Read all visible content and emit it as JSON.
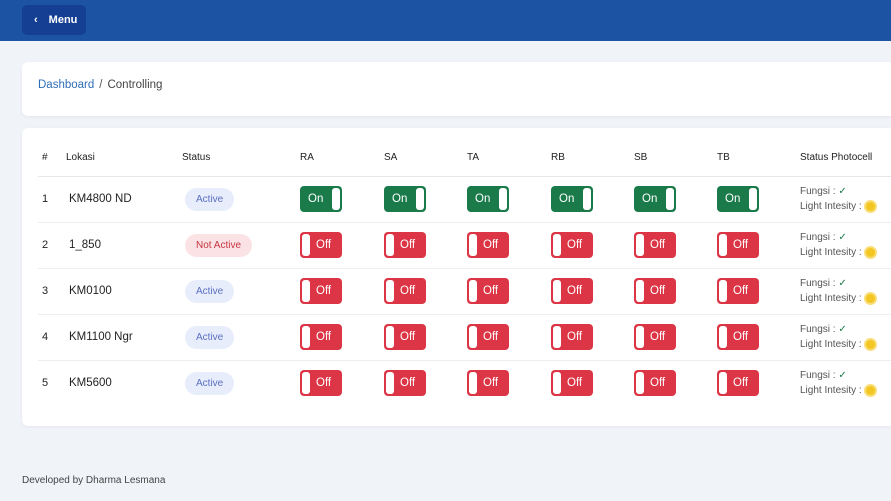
{
  "header": {
    "menu_label": "Menu"
  },
  "breadcrumb": {
    "home": "Dashboard",
    "separator": "/",
    "current": "Controlling"
  },
  "table": {
    "columns": [
      "#",
      "Lokasi",
      "Status",
      "RA",
      "SA",
      "TA",
      "RB",
      "SB",
      "TB",
      "Status Photocell"
    ],
    "rows": [
      {
        "no": "1",
        "lokasi": "KM4800 ND",
        "status": "Active",
        "toggles": [
          "On",
          "On",
          "On",
          "On",
          "On",
          "On"
        ]
      },
      {
        "no": "2",
        "lokasi": "1_850",
        "status": "Not Active",
        "toggles": [
          "Off",
          "Off",
          "Off",
          "Off",
          "Off",
          "Off"
        ]
      },
      {
        "no": "3",
        "lokasi": "KM0100",
        "status": "Active",
        "toggles": [
          "Off",
          "Off",
          "Off",
          "Off",
          "Off",
          "Off"
        ]
      },
      {
        "no": "4",
        "lokasi": "KM1100 Ngr",
        "status": "Active",
        "toggles": [
          "Off",
          "Off",
          "Off",
          "Off",
          "Off",
          "Off"
        ]
      },
      {
        "no": "5",
        "lokasi": "KM5600",
        "status": "Active",
        "toggles": [
          "Off",
          "Off",
          "Off",
          "Off",
          "Off",
          "Off"
        ]
      }
    ],
    "photocell": {
      "fungsi_label": "Fungsi :",
      "light_label": "Light Intesity :"
    }
  },
  "footer": {
    "text": "Developed by Dharma Lesmana"
  },
  "colors": {
    "primary": "#1d53a3",
    "on": "#1a7a4a",
    "off": "#dc3545"
  }
}
